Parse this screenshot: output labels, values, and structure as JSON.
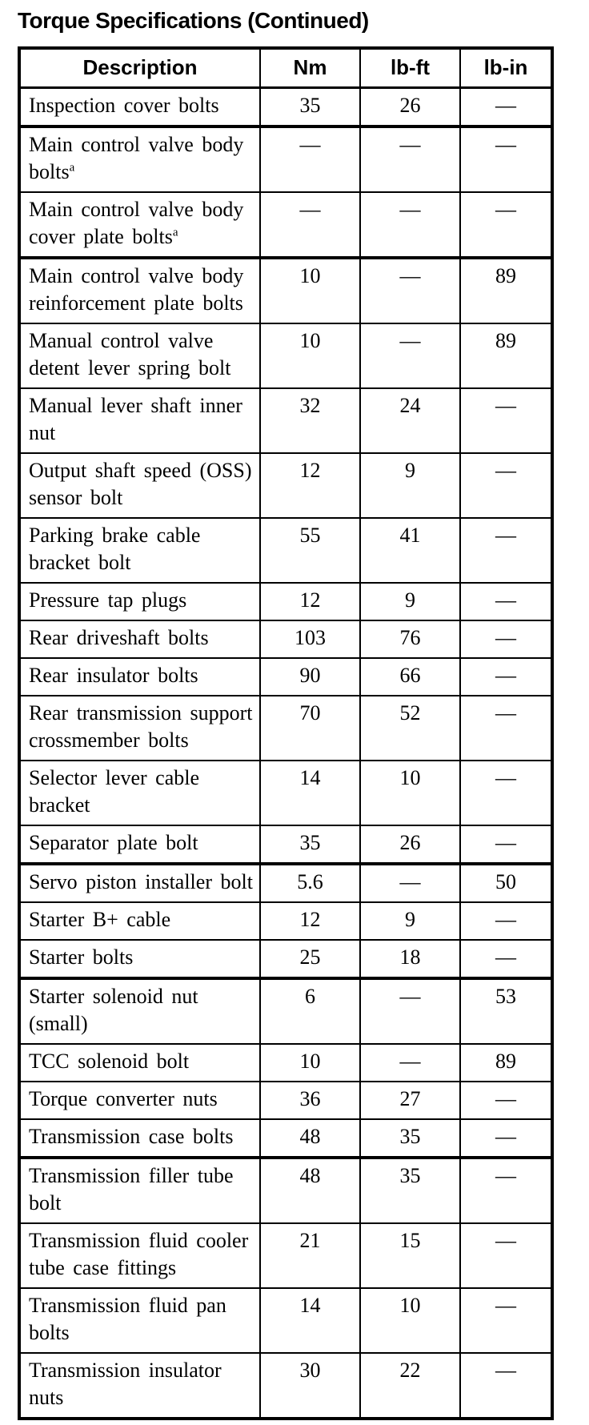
{
  "page": {
    "title": "Torque Specifications (Continued)"
  },
  "table": {
    "columns": {
      "description": "Description",
      "nm": "Nm",
      "lb_ft": "lb-ft",
      "lb_in": "lb-in"
    },
    "dash": "—",
    "rows": [
      {
        "description": "Inspection cover bolts",
        "footnote": "",
        "nm": "35",
        "lb_ft": "26",
        "lb_in": "—",
        "thick_bottom": true
      },
      {
        "description": "Main control valve body bolts",
        "footnote": "a",
        "nm": "—",
        "lb_ft": "—",
        "lb_in": "—",
        "thick_bottom": false
      },
      {
        "description": "Main control valve body cover plate bolts",
        "footnote": "a",
        "nm": "—",
        "lb_ft": "—",
        "lb_in": "—",
        "thick_bottom": true
      },
      {
        "description": "Main control valve body reinforcement plate bolts",
        "footnote": "",
        "nm": "10",
        "lb_ft": "—",
        "lb_in": "89",
        "thick_bottom": false
      },
      {
        "description": "Manual control valve detent lever spring bolt",
        "footnote": "",
        "nm": "10",
        "lb_ft": "—",
        "lb_in": "89",
        "thick_bottom": false
      },
      {
        "description": "Manual lever shaft inner nut",
        "footnote": "",
        "nm": "32",
        "lb_ft": "24",
        "lb_in": "—",
        "thick_bottom": false
      },
      {
        "description": "Output shaft speed (OSS) sensor bolt",
        "footnote": "",
        "nm": "12",
        "lb_ft": "9",
        "lb_in": "—",
        "thick_bottom": false
      },
      {
        "description": "Parking brake cable bracket bolt",
        "footnote": "",
        "nm": "55",
        "lb_ft": "41",
        "lb_in": "—",
        "thick_bottom": false
      },
      {
        "description": "Pressure tap plugs",
        "footnote": "",
        "nm": "12",
        "lb_ft": "9",
        "lb_in": "—",
        "thick_bottom": false
      },
      {
        "description": "Rear driveshaft bolts",
        "footnote": "",
        "nm": "103",
        "lb_ft": "76",
        "lb_in": "—",
        "thick_bottom": false
      },
      {
        "description": "Rear insulator bolts",
        "footnote": "",
        "nm": "90",
        "lb_ft": "66",
        "lb_in": "—",
        "thick_bottom": false
      },
      {
        "description": "Rear transmission support crossmember bolts",
        "footnote": "",
        "nm": "70",
        "lb_ft": "52",
        "lb_in": "—",
        "thick_bottom": false
      },
      {
        "description": "Selector lever cable bracket",
        "footnote": "",
        "nm": "14",
        "lb_ft": "10",
        "lb_in": "—",
        "thick_bottom": false
      },
      {
        "description": "Separator plate bolt",
        "footnote": "",
        "nm": "35",
        "lb_ft": "26",
        "lb_in": "—",
        "thick_bottom": true
      },
      {
        "description": "Servo piston installer bolt",
        "footnote": "",
        "nm": "5.6",
        "lb_ft": "—",
        "lb_in": "50",
        "thick_bottom": false
      },
      {
        "description": "Starter B+ cable",
        "footnote": "",
        "nm": "12",
        "lb_ft": "9",
        "lb_in": "—",
        "thick_bottom": false
      },
      {
        "description": "Starter bolts",
        "footnote": "",
        "nm": "25",
        "lb_ft": "18",
        "lb_in": "—",
        "thick_bottom": true
      },
      {
        "description": "Starter solenoid nut (small)",
        "footnote": "",
        "nm": "6",
        "lb_ft": "—",
        "lb_in": "53",
        "thick_bottom": false
      },
      {
        "description": "TCC solenoid bolt",
        "footnote": "",
        "nm": "10",
        "lb_ft": "—",
        "lb_in": "89",
        "thick_bottom": false
      },
      {
        "description": "Torque converter nuts",
        "footnote": "",
        "nm": "36",
        "lb_ft": "27",
        "lb_in": "—",
        "thick_bottom": false
      },
      {
        "description": "Transmission case bolts",
        "footnote": "",
        "nm": "48",
        "lb_ft": "35",
        "lb_in": "—",
        "thick_bottom": true
      },
      {
        "description": "Transmission filler tube bolt",
        "footnote": "",
        "nm": "48",
        "lb_ft": "35",
        "lb_in": "—",
        "thick_bottom": false
      },
      {
        "description": "Transmission fluid cooler tube case fittings",
        "footnote": "",
        "nm": "21",
        "lb_ft": "15",
        "lb_in": "—",
        "thick_bottom": false
      },
      {
        "description": "Transmission fluid pan bolts",
        "footnote": "",
        "nm": "14",
        "lb_ft": "10",
        "lb_in": "—",
        "thick_bottom": false
      },
      {
        "description": "Transmission insulator nuts",
        "footnote": "",
        "nm": "30",
        "lb_ft": "22",
        "lb_in": "—",
        "thick_bottom": false
      }
    ]
  },
  "colors": {
    "text": "#000000",
    "background": "#ffffff",
    "border": "#000000"
  }
}
